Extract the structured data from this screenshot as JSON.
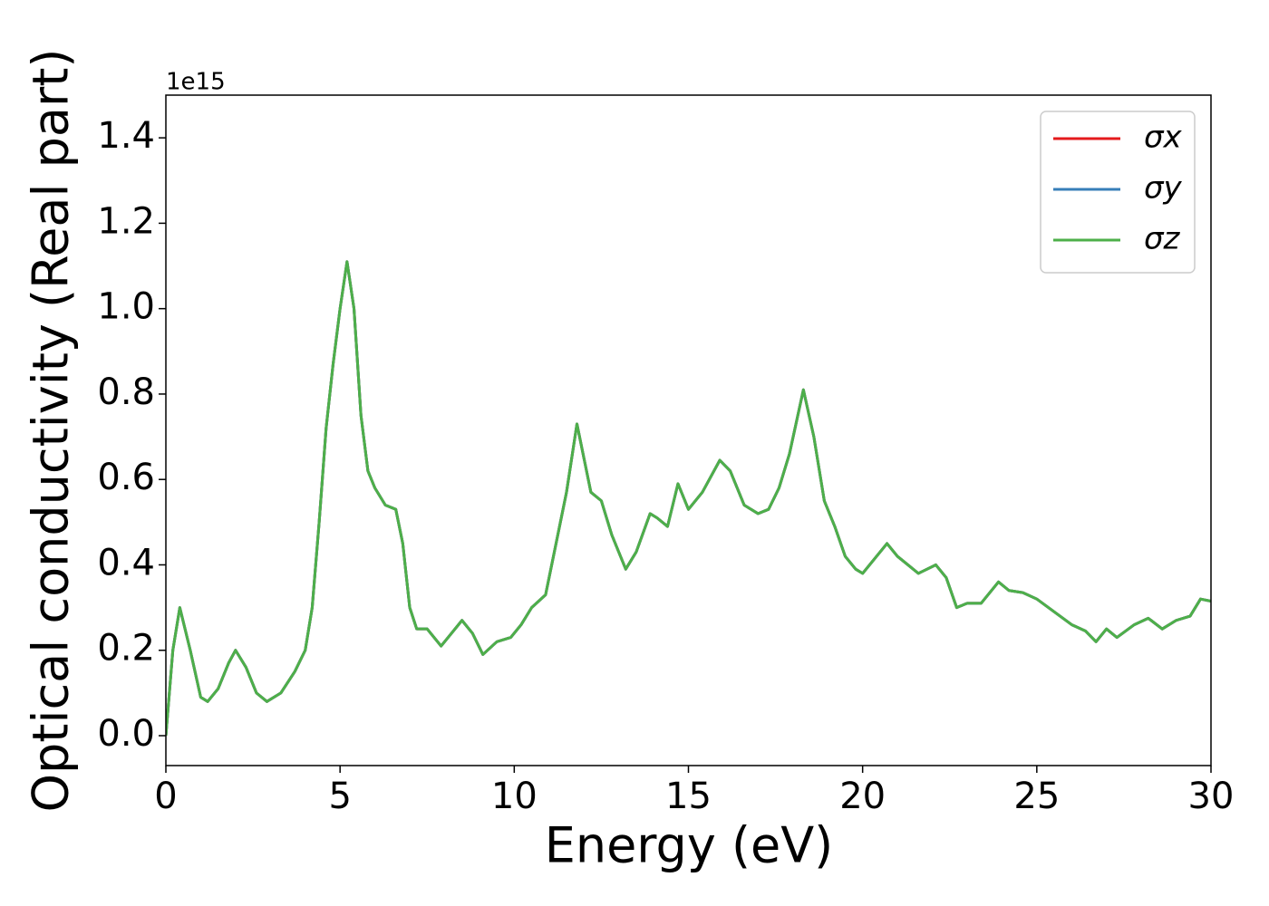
{
  "chart_data": {
    "type": "line",
    "xlabel": "Energy (eV)",
    "ylabel": "Optical conductivity (Real part)",
    "y_offset_label": "1e15",
    "x": [
      0.0,
      0.2,
      0.4,
      0.7,
      1.0,
      1.2,
      1.5,
      1.8,
      2.0,
      2.3,
      2.6,
      2.9,
      3.3,
      3.7,
      4.0,
      4.2,
      4.4,
      4.6,
      4.8,
      5.0,
      5.2,
      5.4,
      5.6,
      5.8,
      6.0,
      6.3,
      6.6,
      6.8,
      7.0,
      7.2,
      7.5,
      7.9,
      8.2,
      8.5,
      8.8,
      9.1,
      9.5,
      9.9,
      10.2,
      10.5,
      10.9,
      11.2,
      11.5,
      11.8,
      12.0,
      12.2,
      12.5,
      12.8,
      13.2,
      13.5,
      13.9,
      14.1,
      14.4,
      14.7,
      15.0,
      15.4,
      15.9,
      16.2,
      16.6,
      17.0,
      17.3,
      17.6,
      17.9,
      18.3,
      18.6,
      18.9,
      19.2,
      19.5,
      19.8,
      20.0,
      20.4,
      20.7,
      21.0,
      21.3,
      21.6,
      22.1,
      22.4,
      22.7,
      23.0,
      23.4,
      23.9,
      24.2,
      24.6,
      25.0,
      25.5,
      26.0,
      26.4,
      26.7,
      27.0,
      27.3,
      27.8,
      28.2,
      28.6,
      29.0,
      29.4,
      29.7,
      30.0
    ],
    "series": [
      {
        "name": "σx",
        "color": "#e41a1c",
        "values": [
          0.0,
          0.2,
          0.3,
          0.2,
          0.09,
          0.08,
          0.11,
          0.17,
          0.2,
          0.16,
          0.1,
          0.08,
          0.1,
          0.15,
          0.2,
          0.3,
          0.5,
          0.72,
          0.87,
          1.0,
          1.11,
          1.0,
          0.75,
          0.62,
          0.58,
          0.54,
          0.53,
          0.45,
          0.3,
          0.25,
          0.25,
          0.21,
          0.24,
          0.27,
          0.24,
          0.19,
          0.22,
          0.23,
          0.26,
          0.3,
          0.33,
          0.45,
          0.57,
          0.73,
          0.65,
          0.57,
          0.55,
          0.47,
          0.39,
          0.43,
          0.52,
          0.51,
          0.49,
          0.59,
          0.53,
          0.57,
          0.645,
          0.62,
          0.54,
          0.52,
          0.53,
          0.58,
          0.66,
          0.81,
          0.7,
          0.55,
          0.49,
          0.42,
          0.39,
          0.38,
          0.42,
          0.45,
          0.42,
          0.4,
          0.38,
          0.4,
          0.37,
          0.3,
          0.31,
          0.31,
          0.36,
          0.34,
          0.335,
          0.32,
          0.29,
          0.26,
          0.245,
          0.22,
          0.25,
          0.23,
          0.26,
          0.275,
          0.25,
          0.27,
          0.28,
          0.32,
          0.315
        ]
      },
      {
        "name": "σy",
        "color": "#377eb8",
        "values": [
          0.0,
          0.2,
          0.3,
          0.2,
          0.09,
          0.08,
          0.11,
          0.17,
          0.2,
          0.16,
          0.1,
          0.08,
          0.1,
          0.15,
          0.2,
          0.3,
          0.5,
          0.72,
          0.87,
          1.0,
          1.11,
          1.0,
          0.75,
          0.62,
          0.58,
          0.54,
          0.53,
          0.45,
          0.3,
          0.25,
          0.25,
          0.21,
          0.24,
          0.27,
          0.24,
          0.19,
          0.22,
          0.23,
          0.26,
          0.3,
          0.33,
          0.45,
          0.57,
          0.73,
          0.65,
          0.57,
          0.55,
          0.47,
          0.39,
          0.43,
          0.52,
          0.51,
          0.49,
          0.59,
          0.53,
          0.57,
          0.645,
          0.62,
          0.54,
          0.52,
          0.53,
          0.58,
          0.66,
          0.81,
          0.7,
          0.55,
          0.49,
          0.42,
          0.39,
          0.38,
          0.42,
          0.45,
          0.42,
          0.4,
          0.38,
          0.4,
          0.37,
          0.3,
          0.31,
          0.31,
          0.36,
          0.34,
          0.335,
          0.32,
          0.29,
          0.26,
          0.245,
          0.22,
          0.25,
          0.23,
          0.26,
          0.275,
          0.25,
          0.27,
          0.28,
          0.32,
          0.315
        ]
      },
      {
        "name": "σz",
        "color": "#4daf4a",
        "values": [
          0.0,
          0.2,
          0.3,
          0.2,
          0.09,
          0.08,
          0.11,
          0.17,
          0.2,
          0.16,
          0.1,
          0.08,
          0.1,
          0.15,
          0.2,
          0.3,
          0.5,
          0.72,
          0.87,
          1.0,
          1.11,
          1.0,
          0.75,
          0.62,
          0.58,
          0.54,
          0.53,
          0.45,
          0.3,
          0.25,
          0.25,
          0.21,
          0.24,
          0.27,
          0.24,
          0.19,
          0.22,
          0.23,
          0.26,
          0.3,
          0.33,
          0.45,
          0.57,
          0.73,
          0.65,
          0.57,
          0.55,
          0.47,
          0.39,
          0.43,
          0.52,
          0.51,
          0.49,
          0.59,
          0.53,
          0.57,
          0.645,
          0.62,
          0.54,
          0.52,
          0.53,
          0.58,
          0.66,
          0.81,
          0.7,
          0.55,
          0.49,
          0.42,
          0.39,
          0.38,
          0.42,
          0.45,
          0.42,
          0.4,
          0.38,
          0.4,
          0.37,
          0.3,
          0.31,
          0.31,
          0.36,
          0.34,
          0.335,
          0.32,
          0.29,
          0.26,
          0.245,
          0.22,
          0.25,
          0.23,
          0.26,
          0.275,
          0.25,
          0.27,
          0.28,
          0.32,
          0.315
        ]
      }
    ],
    "xlim": [
      0,
      30
    ],
    "xticks": [
      0,
      5,
      10,
      15,
      20,
      25,
      30
    ],
    "ylim": [
      -0.07,
      1.5
    ],
    "yticks": [
      {
        "value": 0.0,
        "label": "0.0"
      },
      {
        "value": 0.2,
        "label": "0.2"
      },
      {
        "value": 0.4,
        "label": "0.4"
      },
      {
        "value": 0.6,
        "label": "0.6"
      },
      {
        "value": 0.8,
        "label": "0.8"
      },
      {
        "value": 1.0,
        "label": "1.0"
      },
      {
        "value": 1.2,
        "label": "1.2"
      },
      {
        "value": 1.4,
        "label": "1.4"
      }
    ],
    "grid": false,
    "legend": "upper right"
  }
}
